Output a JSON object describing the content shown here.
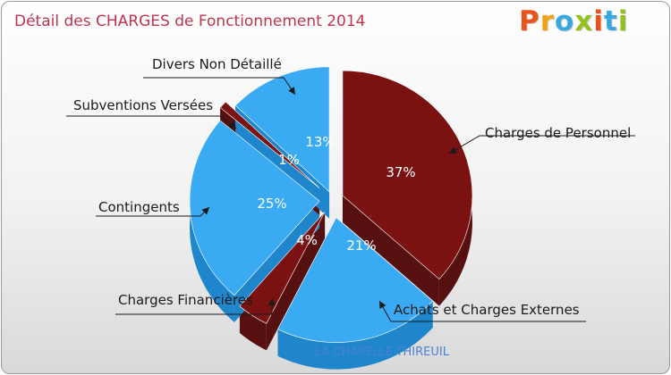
{
  "title": "Détail des CHARGES de Fonctionnement 2014",
  "logo": {
    "letters": [
      "P",
      "r",
      "o",
      "x",
      "i",
      "t",
      "i"
    ],
    "colors": [
      "#e8541c",
      "#f2a21a",
      "#3aa8e0",
      "#94c11f",
      "#e8541c",
      "#3aa8e0",
      "#94c11f"
    ]
  },
  "subtitle": "LA CHAPELLE-THIREUIL",
  "colors": {
    "blue": "#3aaaf2",
    "blue_dark": "#1f86cc",
    "red": "#7a1212",
    "red_dark": "#561010"
  },
  "chart_data": {
    "type": "pie",
    "title": "Détail des CHARGES de Fonctionnement 2014",
    "slices": [
      {
        "label": "Charges de Personnel",
        "pct_text": "37%",
        "value": 37,
        "color": "red"
      },
      {
        "label": "Achats et Charges Externes",
        "pct_text": "21%",
        "value": 21,
        "color": "blue"
      },
      {
        "label": "Charges Financières",
        "pct_text": "4%",
        "value": 4,
        "color": "red"
      },
      {
        "label": "Contingents",
        "pct_text": "25%",
        "value": 25,
        "color": "blue"
      },
      {
        "label": "Subventions Versées",
        "pct_text": "1%",
        "value": 1,
        "color": "red"
      },
      {
        "label": "Divers Non Détaillé",
        "pct_text": "13%",
        "value": 13,
        "color": "blue"
      }
    ],
    "legend": "callouts"
  }
}
